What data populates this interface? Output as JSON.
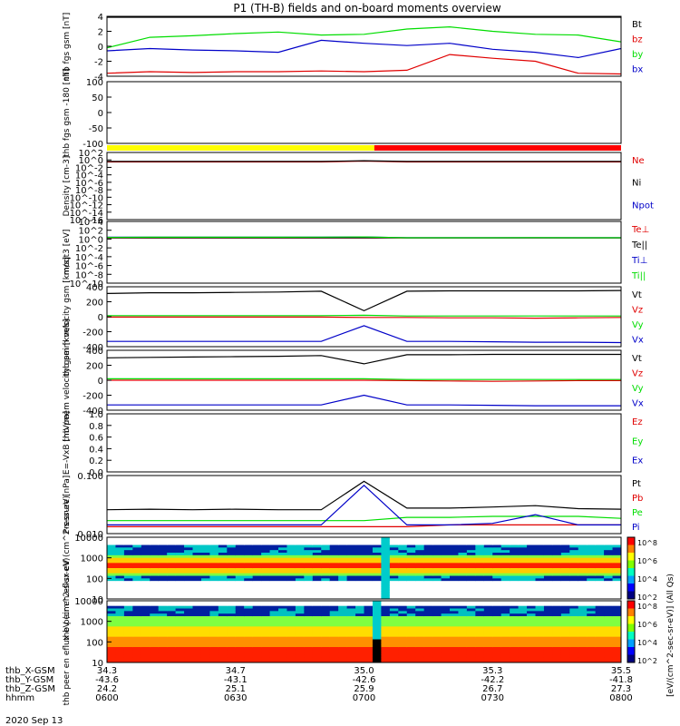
{
  "title": "P1 (TH-B) fields and on-board moments overview",
  "date_label": "2020 Sep 13",
  "colorbar_label": "[eV/(cm^2-sec-sr-eV)] (All Qs)",
  "colorbar_ticks": [
    "10^8",
    "10^6",
    "10^4",
    "10^2"
  ],
  "ephemeris": {
    "rows": [
      {
        "name": "thb_X-GSM",
        "values": [
          "34.3",
          "34.7",
          "35.0",
          "35.3",
          "35.5"
        ]
      },
      {
        "name": "thb_Y-GSM",
        "values": [
          "-43.6",
          "-43.1",
          "-42.6",
          "-42.2",
          "-41.8"
        ]
      },
      {
        "name": "thb_Z-GSM",
        "values": [
          "24.2",
          "25.1",
          "25.9",
          "26.7",
          "27.3"
        ]
      },
      {
        "name": "hhmm",
        "values": [
          "0600",
          "0630",
          "0700",
          "0730",
          "0800"
        ]
      }
    ]
  },
  "colors": {
    "black": "#000000",
    "red": "#e00000",
    "green": "#00dd00",
    "blue": "#0000c8",
    "yellow": "#ffff00",
    "status_red": "#ff0000"
  },
  "chart_data": [
    {
      "type": "line",
      "id": "fgs",
      "ylabel": "thb fgs gsm [nT]",
      "ylim": [
        -4,
        4
      ],
      "yticks": [
        "4",
        "2",
        "0",
        "-2",
        "-4"
      ],
      "series": [
        {
          "name": "Bt",
          "color": "black",
          "values": [
            4.2,
            4.3,
            4.2,
            4.4,
            4.3,
            4.3,
            4.4,
            4.4,
            4.3,
            4.4,
            4.5,
            4.5,
            4.4
          ]
        },
        {
          "name": "bz",
          "color": "red",
          "values": [
            -3.6,
            -3.4,
            -3.5,
            -3.4,
            -3.4,
            -3.3,
            -3.4,
            -3.2,
            -1.1,
            -1.6,
            -2.0,
            -3.6,
            -3.7
          ]
        },
        {
          "name": "by",
          "color": "green",
          "values": [
            -0.2,
            1.2,
            1.4,
            1.7,
            1.9,
            1.5,
            1.6,
            2.3,
            2.6,
            2.0,
            1.6,
            1.5,
            0.6
          ]
        },
        {
          "name": "bx",
          "color": "blue",
          "values": [
            -0.6,
            -0.3,
            -0.5,
            -0.6,
            -0.8,
            0.8,
            0.4,
            0.1,
            0.4,
            -0.4,
            -0.8,
            -1.5,
            -0.3
          ]
        }
      ]
    },
    {
      "type": "line",
      "id": "fgs_dsl",
      "ylabel": "thb fgs gsm -180 [nT]",
      "ylim": [
        -120,
        100
      ],
      "yticks": [
        "100",
        "50",
        "0",
        "-50",
        "-100"
      ],
      "series": []
    },
    {
      "type": "line",
      "id": "density",
      "ylabel": "Density [cm-3]",
      "ylim": [
        -16,
        2
      ],
      "log": true,
      "yticks": [
        "10^2",
        "10^0",
        "10^-2",
        "10^-4",
        "10^-6",
        "10^-8",
        "10^-10",
        "10^-12",
        "10^-14",
        "10^-16"
      ],
      "series": [
        {
          "name": "Ne",
          "color": "red",
          "values": [
            0.3,
            0.3,
            0.3,
            0.3,
            0.3,
            0.3,
            0.5,
            0.3,
            0.3,
            0.3,
            0.3,
            0.3,
            0.3
          ]
        },
        {
          "name": "Ni",
          "color": "black",
          "values": [
            0.4,
            0.4,
            0.4,
            0.4,
            0.4,
            0.4,
            0.6,
            0.4,
            0.4,
            0.4,
            0.4,
            0.4,
            0.4
          ]
        },
        {
          "name": "Npot",
          "color": "blue",
          "values": []
        }
      ]
    },
    {
      "type": "line",
      "id": "temperature",
      "ylabel": "moqt3 [eV]",
      "ylim": [
        -10,
        4
      ],
      "log": true,
      "yticks": [
        "10^4",
        "10^2",
        "10^0",
        "10^-2",
        "10^-4",
        "10^-6",
        "10^-8",
        "10^-10"
      ],
      "series": [
        {
          "name": "Te⊥",
          "color": "red",
          "values": [
            1.9,
            1.9,
            1.9,
            1.9,
            1.9,
            1.9,
            1.9,
            1.9,
            1.9,
            1.9,
            1.9,
            1.9,
            1.9
          ]
        },
        {
          "name": "Te||",
          "color": "black",
          "values": [
            2.0,
            2.0,
            2.0,
            2.0,
            2.0,
            2.0,
            2.0,
            2.0,
            2.0,
            2.0,
            2.0,
            2.0,
            2.0
          ]
        },
        {
          "name": "Ti⊥",
          "color": "blue",
          "values": [
            2.6,
            2.7,
            2.7,
            2.7,
            2.7,
            2.8,
            3.0,
            2.0,
            2.0,
            2.0,
            2.0,
            2.0,
            2.0
          ]
        },
        {
          "name": "Ti||",
          "color": "green",
          "values": [
            2.4,
            2.6,
            2.6,
            2.6,
            2.6,
            2.7,
            3.0,
            2.0,
            2.0,
            2.0,
            2.1,
            2.0,
            2.0
          ]
        }
      ]
    },
    {
      "type": "line",
      "id": "peim_vel",
      "ylabel": "thb peim velocity gsm [km/s]",
      "ylim": [
        -400,
        400
      ],
      "yticks": [
        "400",
        "200",
        "0",
        "-200",
        "-400"
      ],
      "series": [
        {
          "name": "Vt",
          "color": "black",
          "values": [
            310,
            320,
            320,
            325,
            330,
            340,
            80,
            340,
            345,
            345,
            345,
            345,
            350
          ]
        },
        {
          "name": "Vz",
          "color": "red",
          "values": [
            -5,
            -5,
            -5,
            -5,
            -5,
            -5,
            -10,
            -10,
            -15,
            -15,
            -20,
            -15,
            -10
          ]
        },
        {
          "name": "Vy",
          "color": "green",
          "values": [
            15,
            15,
            15,
            15,
            15,
            15,
            20,
            10,
            10,
            10,
            10,
            10,
            10
          ]
        },
        {
          "name": "Vx",
          "color": "blue",
          "values": [
            -330,
            -330,
            -330,
            -330,
            -330,
            -330,
            -120,
            -330,
            -330,
            -335,
            -340,
            -340,
            -345
          ]
        }
      ]
    },
    {
      "type": "line",
      "id": "peem_vel",
      "ylabel": "thb peem velocity gsm [km/s]",
      "ylim": [
        -400,
        400
      ],
      "yticks": [
        "400",
        "200",
        "0",
        "-200",
        "-400"
      ],
      "series": [
        {
          "name": "Vt",
          "color": "black",
          "values": [
            300,
            305,
            310,
            315,
            320,
            330,
            220,
            340,
            340,
            345,
            345,
            345,
            345
          ]
        },
        {
          "name": "Vz",
          "color": "red",
          "values": [
            0,
            0,
            0,
            0,
            0,
            0,
            0,
            -5,
            -10,
            -15,
            -10,
            -5,
            -5
          ]
        },
        {
          "name": "Vy",
          "color": "green",
          "values": [
            20,
            20,
            20,
            20,
            20,
            20,
            20,
            10,
            10,
            10,
            10,
            10,
            10
          ]
        },
        {
          "name": "Vx",
          "color": "blue",
          "values": [
            -330,
            -330,
            -330,
            -330,
            -330,
            -330,
            -200,
            -330,
            -330,
            -335,
            -340,
            -340,
            -340
          ]
        }
      ]
    },
    {
      "type": "line",
      "id": "efield",
      "ylabel": "E=-VxB [mV/m]",
      "ylim": [
        0,
        1
      ],
      "yticks": [
        "1.0",
        "0.8",
        "0.6",
        "0.4",
        "0.2",
        "0.0"
      ],
      "series": [
        {
          "name": "Ez",
          "color": "red",
          "values": []
        },
        {
          "name": "Ey",
          "color": "green",
          "values": []
        },
        {
          "name": "Ex",
          "color": "blue",
          "values": []
        }
      ]
    },
    {
      "type": "line",
      "id": "pressure",
      "ylabel": "Pressure [nPa]",
      "ylim": [
        -2.3,
        -0.6
      ],
      "log": true,
      "yticks": [
        "0.100",
        "0.010"
      ],
      "series": [
        {
          "name": "Pt",
          "color": "black",
          "values": [
            0.025,
            0.026,
            0.025,
            0.026,
            0.025,
            0.025,
            0.17,
            0.028,
            0.028,
            0.03,
            0.033,
            0.027,
            0.026
          ]
        },
        {
          "name": "Pb",
          "color": "red",
          "values": [
            0.008,
            0.008,
            0.008,
            0.008,
            0.008,
            0.008,
            0.008,
            0.008,
            0.009,
            0.009,
            0.009,
            0.009,
            0.009
          ]
        },
        {
          "name": "Pe",
          "color": "green",
          "values": [
            0.012,
            0.012,
            0.012,
            0.012,
            0.012,
            0.012,
            0.012,
            0.015,
            0.015,
            0.016,
            0.016,
            0.016,
            0.014
          ]
        },
        {
          "name": "Pi",
          "color": "blue",
          "values": [
            0.009,
            0.009,
            0.009,
            0.009,
            0.009,
            0.009,
            0.13,
            0.009,
            0.009,
            0.01,
            0.018,
            0.009,
            0.009
          ]
        }
      ]
    },
    {
      "type": "heatmap",
      "id": "peir",
      "ylabel": "thb peir en eflux eV (cm^2-s-sr-eV)",
      "ylim": [
        1,
        4.3
      ],
      "log": true,
      "yticks": [
        "10000",
        "1000",
        "100",
        "10"
      ]
    },
    {
      "type": "heatmap",
      "id": "peer",
      "ylabel": "thb peer en eflux eV (cm^2-s-sr-eV)",
      "ylim": [
        0.7,
        4.3
      ],
      "log": true,
      "yticks": [
        "10000",
        "1000",
        "100",
        "10"
      ]
    }
  ]
}
